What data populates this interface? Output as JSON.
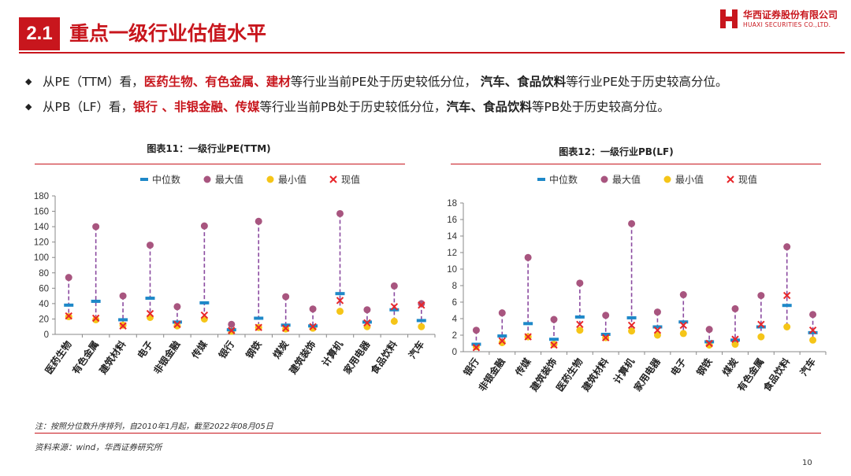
{
  "header": {
    "section_number": "2.1",
    "title": "重点一级行业估值水平",
    "brand_cn": "华西证券股份有限公司",
    "brand_en": "HUAXI SECURITIES CO.,LTD."
  },
  "bullets": [
    {
      "parts": [
        {
          "text": "从PE（TTM）看，",
          "style": "plain"
        },
        {
          "text": "医药生物、有色金属、建材",
          "style": "hl"
        },
        {
          "text": "等行业当前PE处于历史较低分位，  ",
          "style": "plain"
        },
        {
          "text": "汽车、食品饮料",
          "style": "hl"
        },
        {
          "text": "等行业PE处于历史较高分位。",
          "style": "plain"
        }
      ]
    },
    {
      "parts": [
        {
          "text": "从PB（LF）看，",
          "style": "plain"
        },
        {
          "text": "银行 、非银金融、传媒",
          "style": "hl"
        },
        {
          "text": "等行业当前PB处于历史较低分位，",
          "style": "plain"
        },
        {
          "text": "汽车、食品饮料",
          "style": "hl"
        },
        {
          "text": "等PB处于历史较高分位。",
          "style": "plain"
        }
      ]
    }
  ],
  "colors": {
    "brand_red": "#c8161d",
    "median": "#1e88c8",
    "max": "#a8557f",
    "min": "#f5c518",
    "current": "#e8262a",
    "range_line": "#8b4ba0"
  },
  "legend": {
    "median": "中位数",
    "max": "最大值",
    "min": "最小值",
    "current": "现值"
  },
  "chart_data": [
    {
      "type": "scatter",
      "title": "图表11：一级行业PE(TTM)",
      "ylim": [
        0,
        180
      ],
      "yticks": [
        0,
        20,
        40,
        60,
        80,
        100,
        120,
        140,
        160,
        180
      ],
      "grid": false,
      "legend_position": "top",
      "categories": [
        "医药生物",
        "有色金属",
        "建筑材料",
        "电子",
        "非银金融",
        "传媒",
        "银行",
        "钢铁",
        "煤炭",
        "建筑装饰",
        "计算机",
        "家用电器",
        "食品饮料",
        "汽车"
      ],
      "series": [
        {
          "name": "中位数",
          "values": [
            38,
            43,
            19,
            47,
            16,
            41,
            6,
            21,
            12,
            11,
            53,
            16,
            32,
            18
          ]
        },
        {
          "name": "最大值",
          "values": [
            74,
            140,
            50,
            116,
            36,
            141,
            13,
            147,
            49,
            33,
            157,
            32,
            63,
            40
          ]
        },
        {
          "name": "最小值",
          "values": [
            23,
            19,
            12,
            22,
            11,
            20,
            4,
            9,
            7,
            8,
            30,
            10,
            17,
            10
          ]
        },
        {
          "name": "现值",
          "values": [
            24,
            21,
            11,
            27,
            13,
            25,
            5,
            9,
            8,
            10,
            44,
            15,
            36,
            38
          ]
        }
      ]
    },
    {
      "type": "scatter",
      "title": "图表12：一级行业PB(LF)",
      "ylim": [
        0,
        18
      ],
      "yticks": [
        0,
        2,
        4,
        6,
        8,
        10,
        12,
        14,
        16,
        18
      ],
      "grid": false,
      "legend_position": "top",
      "categories": [
        "银行",
        "非银金融",
        "传媒",
        "建筑装饰",
        "医药生物",
        "建筑材料",
        "计算机",
        "家用电器",
        "电子",
        "钢铁",
        "煤炭",
        "有色金属",
        "食品饮料",
        "汽车"
      ],
      "series": [
        {
          "name": "中位数",
          "values": [
            0.9,
            1.9,
            3.4,
            1.5,
            4.2,
            2.1,
            4.1,
            3.0,
            3.6,
            1.2,
            1.4,
            3.0,
            5.6,
            2.3
          ]
        },
        {
          "name": "最大值",
          "values": [
            2.6,
            4.7,
            11.4,
            3.9,
            8.3,
            4.4,
            15.5,
            4.8,
            6.9,
            2.7,
            5.2,
            6.8,
            12.7,
            4.5
          ]
        },
        {
          "name": "最小值",
          "values": [
            0.6,
            1.1,
            1.8,
            0.9,
            2.6,
            1.7,
            2.5,
            2.0,
            2.2,
            0.8,
            0.9,
            1.8,
            3.0,
            1.4
          ]
        },
        {
          "name": "现值",
          "values": [
            0.5,
            1.3,
            1.8,
            0.8,
            3.3,
            1.7,
            3.2,
            2.6,
            3.2,
            1.0,
            1.5,
            3.3,
            6.8,
            2.6
          ]
        }
      ]
    }
  ],
  "footer": {
    "note": "注：按照分位数升序排列，自2010年1月起，截至2022年08月05日",
    "source": "资料来源：wind，华西证券研究所",
    "page_number": "10"
  }
}
